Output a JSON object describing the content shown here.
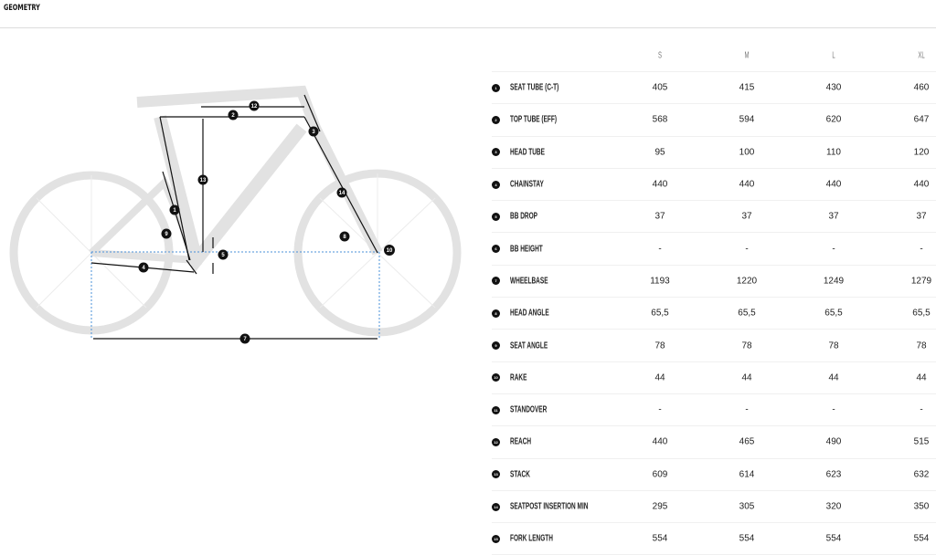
{
  "title": "GEOMETRY",
  "sizes": [
    "S",
    "M",
    "L",
    "XL"
  ],
  "rows": [
    {
      "n": "1",
      "label": "SEAT TUBE (C-T)",
      "v": [
        "405",
        "415",
        "430",
        "460"
      ]
    },
    {
      "n": "2",
      "label": "TOP TUBE (EFF)",
      "v": [
        "568",
        "594",
        "620",
        "647"
      ]
    },
    {
      "n": "3",
      "label": "HEAD TUBE",
      "v": [
        "95",
        "100",
        "110",
        "120"
      ]
    },
    {
      "n": "4",
      "label": "CHAINSTAY",
      "v": [
        "440",
        "440",
        "440",
        "440"
      ]
    },
    {
      "n": "5",
      "label": "BB DROP",
      "v": [
        "37",
        "37",
        "37",
        "37"
      ]
    },
    {
      "n": "6",
      "label": "BB HEIGHT",
      "v": [
        "-",
        "-",
        "-",
        "-"
      ]
    },
    {
      "n": "7",
      "label": "WHEELBASE",
      "v": [
        "1193",
        "1220",
        "1249",
        "1279"
      ]
    },
    {
      "n": "8",
      "label": "HEAD ANGLE",
      "v": [
        "65,5",
        "65,5",
        "65,5",
        "65,5"
      ]
    },
    {
      "n": "9",
      "label": "SEAT ANGLE",
      "v": [
        "78",
        "78",
        "78",
        "78"
      ]
    },
    {
      "n": "10",
      "label": "RAKE",
      "v": [
        "44",
        "44",
        "44",
        "44"
      ]
    },
    {
      "n": "11",
      "label": "STANDOVER",
      "v": [
        "-",
        "-",
        "-",
        "-"
      ]
    },
    {
      "n": "12",
      "label": "REACH",
      "v": [
        "440",
        "465",
        "490",
        "515"
      ]
    },
    {
      "n": "13",
      "label": "STACK",
      "v": [
        "609",
        "614",
        "623",
        "632"
      ]
    },
    {
      "n": "14",
      "label": "SEATPOST INSERTION MIN",
      "v": [
        "295",
        "305",
        "320",
        "350"
      ]
    },
    {
      "n": "15",
      "label": "FORK LENGTH",
      "v": [
        "554",
        "554",
        "554",
        "554"
      ]
    }
  ],
  "diagram_markers": [
    "1",
    "2",
    "3",
    "4",
    "5",
    "7",
    "8",
    "9",
    "10",
    "12",
    "13",
    "14"
  ]
}
